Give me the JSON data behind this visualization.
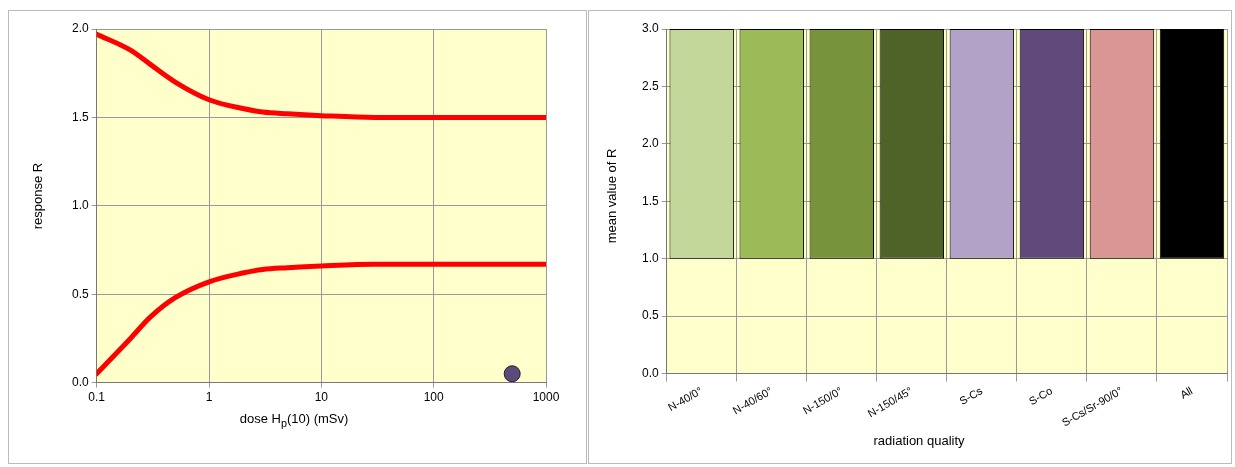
{
  "chart_data": [
    {
      "type": "line",
      "xlabel": "dose H$_{p}$(10) (mSv)",
      "ylabel": "response  R",
      "log": "x",
      "grid": true,
      "legend": false,
      "xlim": [
        0.1,
        1000
      ],
      "xticks": [
        0.1,
        1,
        10,
        100,
        1000
      ],
      "ylim": [
        0,
        2
      ],
      "yticks": [
        {
          "value": 0,
          "label": "0.0"
        },
        0.5,
        {
          "value": 1,
          "label": "1.0"
        },
        1.5,
        {
          "value": 2,
          "label": "2.0"
        }
      ],
      "series": [
        {
          "type": "line",
          "color": "#ff0000",
          "x": [
            0.1,
            0.2,
            0.3,
            0.5,
            1,
            2,
            3,
            5,
            10,
            30,
            100,
            300,
            1000
          ],
          "values": [
            1.97,
            1.88,
            1.8,
            1.7,
            1.6,
            1.55,
            1.53,
            1.52,
            1.51,
            1.5,
            1.5,
            1.5,
            1.5
          ]
        },
        {
          "type": "line",
          "color": "#ff0000",
          "x": [
            0.1,
            0.2,
            0.3,
            0.5,
            1,
            2,
            3,
            5,
            10,
            30,
            100,
            300,
            1000
          ],
          "values": [
            0.05,
            0.25,
            0.37,
            0.48,
            0.57,
            0.62,
            0.64,
            0.65,
            0.66,
            0.67,
            0.67,
            0.67,
            0.67
          ]
        },
        {
          "type": "scatter",
          "color": "#5b4a7c",
          "marker": "circle",
          "x": [
            500
          ],
          "values": [
            0.05
          ]
        }
      ]
    },
    {
      "type": "bar",
      "xlabel": "radiation quality",
      "ylabel": "mean value of  R",
      "grid": true,
      "legend": false,
      "categories": [
        "N-40/0°",
        "N-40/60°",
        "N-150/0°",
        "N-150/45°",
        "S-Cs",
        "S-Co",
        "S-Cs/Sr-90/0°",
        "All"
      ],
      "ylim": [
        0,
        3
      ],
      "yticks": [
        {
          "value": 0,
          "label": "0.0"
        },
        0.5,
        {
          "value": 1,
          "label": "1.0"
        },
        1.5,
        {
          "value": 2,
          "label": "2.0"
        },
        2.5,
        {
          "value": 3,
          "label": "3.0"
        }
      ],
      "base": [
        1,
        1,
        1,
        1,
        1,
        1,
        1,
        1
      ],
      "values": [
        2,
        2,
        2,
        2,
        2,
        2,
        2,
        2
      ],
      "colors": [
        "#c4d79b",
        "#9bbb59",
        "#77933c",
        "#4f6228",
        "#b3a2c7",
        "#604a7b",
        "#d99694",
        "#000000"
      ]
    }
  ]
}
